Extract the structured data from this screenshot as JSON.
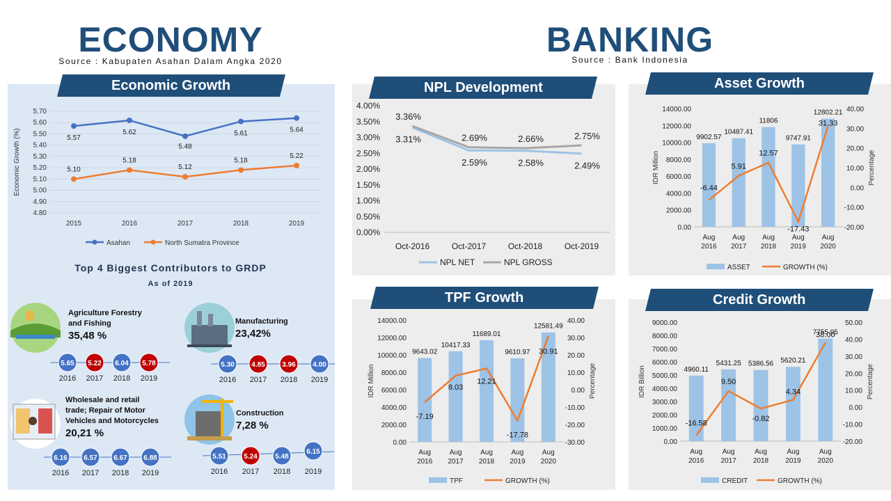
{
  "economy": {
    "title": "ECONOMY",
    "source": "Source : Kabupaten Asahan Dalam Angka 2020",
    "growth_banner": "Economic Growth",
    "contributors_title": "Top 4 Biggest Contributors to GRDP",
    "contributors_subtitle": "As of 2019",
    "sectors": [
      {
        "name": "Agriculture Forestry and Fishing",
        "share": "35,48 %",
        "icon": "farm-icon",
        "years": [
          "2016",
          "2017",
          "2018",
          "2019"
        ],
        "values": [
          "5.65",
          "5.22",
          "6.04",
          "5.78"
        ],
        "colors": [
          "#4472c4",
          "#c00000",
          "#4472c4",
          "#c00000"
        ]
      },
      {
        "name": "Manufacturing",
        "share": "23,42%",
        "icon": "factory-icon",
        "years": [
          "2016",
          "2017",
          "2018",
          "2019"
        ],
        "values": [
          "5.30",
          "4.85",
          "3.96",
          "4.00"
        ],
        "colors": [
          "#4472c4",
          "#c00000",
          "#c00000",
          "#4472c4"
        ]
      },
      {
        "name": "Wholesale and retail trade; Repair of Motor Vehicles and Motorcycles",
        "share": "20,21 %",
        "icon": "shop-icon",
        "years": [
          "2016",
          "2017",
          "2018",
          "2019"
        ],
        "values": [
          "6.16",
          "6.57",
          "6.67",
          "6.88"
        ],
        "colors": [
          "#4472c4",
          "#4472c4",
          "#4472c4",
          "#4472c4"
        ]
      },
      {
        "name": "Construction",
        "share": "7,28 %",
        "icon": "construction-icon",
        "years": [
          "2016",
          "2017",
          "2018",
          "2019"
        ],
        "values": [
          "5.51",
          "5.24",
          "5.48",
          "6.15"
        ],
        "colors": [
          "#4472c4",
          "#c00000",
          "#4472c4",
          "#4472c4"
        ]
      }
    ]
  },
  "banking": {
    "title": "BANKING",
    "source": "Source : Bank Indonesia",
    "npl_banner": "NPL Development",
    "asset_banner": "Asset Growth",
    "tpf_banner": "TPF Growth",
    "credit_banner": "Credit Growth"
  },
  "colors": {
    "navy": "#1f4e79",
    "blue_line": "#4472c4",
    "orange": "#ed7d31",
    "bar": "#9dc3e6",
    "npl_net": "#9dc3e6",
    "npl_gross": "#a6a6a6",
    "panel_bg": "#ededed",
    "econ_bg": "#dde8f5"
  },
  "chart_data": [
    {
      "id": "economic-growth",
      "type": "line",
      "x": [
        "2015",
        "2016",
        "2017",
        "2018",
        "2019"
      ],
      "ylabel": "Economic Growth (%)",
      "ylim": [
        4.8,
        5.7
      ],
      "yticks": [
        "4.80",
        "4.90",
        "5.00",
        "5.10",
        "5.20",
        "5.30",
        "5.40",
        "5.50",
        "5.60",
        "5.70"
      ],
      "series": [
        {
          "name": "Asahan",
          "values": [
            5.57,
            5.62,
            5.48,
            5.61,
            5.64
          ],
          "labels": [
            "5.57",
            "5.62",
            "5.48",
            "5.61",
            "5.64"
          ]
        },
        {
          "name": "North Sumatra Province",
          "values": [
            5.1,
            5.18,
            5.12,
            5.18,
            5.22
          ],
          "labels": [
            "5.10",
            "5.18",
            "5.12",
            "5.18",
            "5.22"
          ]
        }
      ],
      "legend": "bottom"
    },
    {
      "id": "npl-development",
      "type": "line",
      "x": [
        "Oct-2016",
        "Oct-2017",
        "Oct-2018",
        "Oct-2019"
      ],
      "ylim": [
        0,
        4.0
      ],
      "yticks": [
        "0.00%",
        "0.50%",
        "1.00%",
        "1.50%",
        "2.00%",
        "2.50%",
        "3.00%",
        "3.50%",
        "4.00%"
      ],
      "series": [
        {
          "name": "NPL NET",
          "values": [
            3.31,
            2.59,
            2.58,
            2.49
          ],
          "labels": [
            "3.31%",
            "2.59%",
            "2.58%",
            "2.49%"
          ]
        },
        {
          "name": "NPL GROSS",
          "values": [
            3.36,
            2.69,
            2.66,
            2.75
          ],
          "labels": [
            "3.36%",
            "2.69%",
            "2.66%",
            "2.75%"
          ]
        }
      ],
      "legend": "bottom"
    },
    {
      "id": "asset-growth",
      "type": "bar",
      "categories": [
        [
          "Aug",
          "2016"
        ],
        [
          "Aug",
          "2017"
        ],
        [
          "Aug",
          "2018"
        ],
        [
          "Aug",
          "2019"
        ],
        [
          "Aug",
          "2020"
        ]
      ],
      "ylabel": "IDR Million",
      "y2label": "Percentage",
      "ylim": [
        0,
        14000
      ],
      "y2lim": [
        -20,
        40
      ],
      "yticks": [
        "0.00",
        "2000.00",
        "4000.00",
        "6000.00",
        "8000.00",
        "10000.00",
        "12000.00",
        "14000.00"
      ],
      "y2ticks": [
        "-20.00",
        "-10.00",
        "0.00",
        "10.00",
        "20.00",
        "30.00",
        "40.00"
      ],
      "series": [
        {
          "name": "ASSET",
          "kind": "bar",
          "values": [
            9902.57,
            10487.41,
            11806,
            9747.91,
            12802.21
          ],
          "labels": [
            "9902.57",
            "10487.41",
            "11806",
            "9747.91",
            "12802.21"
          ]
        },
        {
          "name": "GROWTH (%)",
          "kind": "line",
          "values": [
            -6.44,
            5.91,
            12.57,
            -17.43,
            31.33
          ],
          "labels": [
            "-6.44",
            "5.91",
            "12.57",
            "-17.43",
            "31.33"
          ]
        }
      ],
      "legend": "bottom"
    },
    {
      "id": "tpf-growth",
      "type": "bar",
      "categories": [
        [
          "Aug",
          "2016"
        ],
        [
          "Aug",
          "2017"
        ],
        [
          "Aug",
          "2018"
        ],
        [
          "Aug",
          "2019"
        ],
        [
          "Aug",
          "2020"
        ]
      ],
      "ylabel": "IDR Million",
      "y2label": "Percentage",
      "ylim": [
        0,
        14000
      ],
      "y2lim": [
        -30,
        40
      ],
      "yticks": [
        "0.00",
        "2000.00",
        "4000.00",
        "6000.00",
        "8000.00",
        "10000.00",
        "12000.00",
        "14000.00"
      ],
      "y2ticks": [
        "-30.00",
        "-20.00",
        "-10.00",
        "0.00",
        "10.00",
        "20.00",
        "30.00",
        "40.00"
      ],
      "series": [
        {
          "name": "TPF",
          "kind": "bar",
          "values": [
            9643.02,
            10417.33,
            11689.01,
            9610.97,
            12581.49
          ],
          "labels": [
            "9643.02",
            "10417.33",
            "11689.01",
            "9610.97",
            "12581.49"
          ]
        },
        {
          "name": "GROWTH (%)",
          "kind": "line",
          "values": [
            -7.19,
            8.03,
            12.21,
            -17.78,
            30.91
          ],
          "labels": [
            "-7.19",
            "8.03",
            "12.21",
            "-17.78",
            "30.91"
          ]
        }
      ],
      "legend": "bottom"
    },
    {
      "id": "credit-growth",
      "type": "bar",
      "categories": [
        [
          "Aug",
          "2016"
        ],
        [
          "Aug",
          "2017"
        ],
        [
          "Aug",
          "2018"
        ],
        [
          "Aug",
          "2019"
        ],
        [
          "Aug",
          "2020"
        ]
      ],
      "ylabel": "IDR Billion",
      "y2label": "Percentage",
      "ylim": [
        0,
        9000
      ],
      "y2lim": [
        -20,
        50
      ],
      "yticks": [
        "0.00",
        "1000.00",
        "2000.00",
        "3000.00",
        "4000.00",
        "5000.00",
        "6000.00",
        "7000.00",
        "8000.00",
        "9000.00"
      ],
      "y2ticks": [
        "-20.00",
        "-10.00",
        "0.00",
        "10.00",
        "20.00",
        "30.00",
        "40.00",
        "50.00"
      ],
      "series": [
        {
          "name": "CREDIT",
          "kind": "bar",
          "values": [
            4960.11,
            5431.25,
            5386.56,
            5620.21,
            7755.95
          ],
          "labels": [
            "4960.11",
            "5431.25",
            "5386.56",
            "5620.21",
            "7755.95"
          ]
        },
        {
          "name": "GROWTH (%)",
          "kind": "line",
          "values": [
            -16.58,
            9.5,
            -0.82,
            4.34,
            38.0
          ],
          "labels": [
            "-16.58",
            "9.50",
            "-0.82",
            "4.34",
            "38.00"
          ]
        }
      ],
      "legend": "bottom"
    }
  ]
}
